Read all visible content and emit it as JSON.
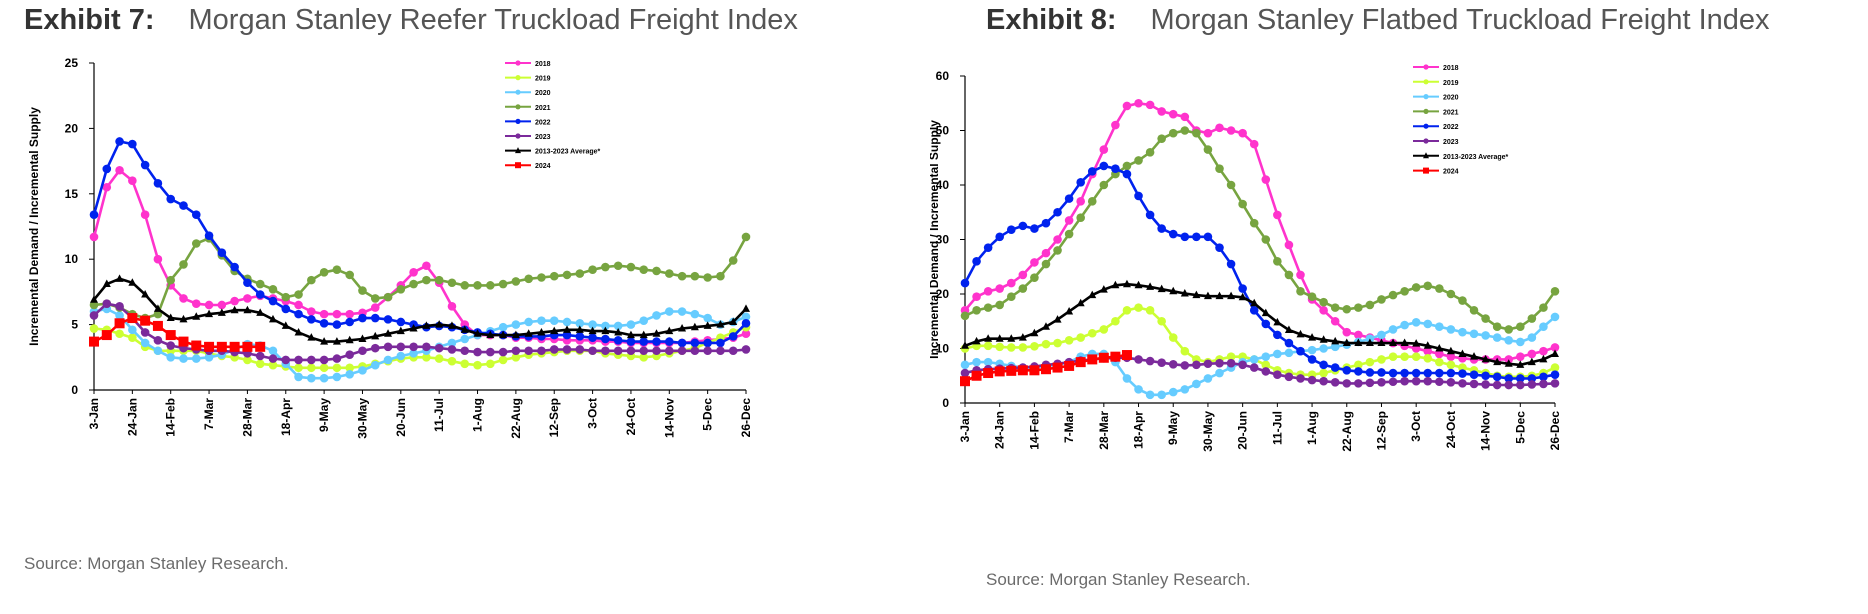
{
  "exhibits": [
    {
      "label": "Exhibit 7:",
      "title": "Morgan Stanley Reefer Truckload Freight Index",
      "source": "Source: Morgan Stanley Research."
    },
    {
      "label": "Exhibit 8:",
      "title": "Morgan Stanley Flatbed Truckload Freight Index",
      "source": "Source: Morgan Stanley Research."
    }
  ],
  "chart_data": [
    {
      "type": "line",
      "title": "Morgan Stanley Reefer Truckload Freight Index",
      "ylabel": "Incremental Demand / Incremental Supply",
      "xlabel": "",
      "ylim": [
        0,
        25
      ],
      "yticks": [
        0,
        5,
        10,
        15,
        20,
        25
      ],
      "xtick_labels": [
        "3-Jan",
        "24-Jan",
        "14-Feb",
        "7-Mar",
        "28-Mar",
        "18-Apr",
        "9-May",
        "30-May",
        "20-Jun",
        "11-Jul",
        "1-Aug",
        "22-Aug",
        "12-Sep",
        "3-Oct",
        "24-Oct",
        "14-Nov",
        "5-Dec",
        "26-Dec"
      ],
      "legend_position": "top-right",
      "grid": false,
      "series": [
        {
          "name": "2018",
          "color": "#ff33cc",
          "marker": "circle",
          "values": [
            11.7,
            15.5,
            16.8,
            16.0,
            13.4,
            10.0,
            8.0,
            7.0,
            6.6,
            6.5,
            6.5,
            6.8,
            7.0,
            7.2,
            7.0,
            6.8,
            6.5,
            6.0,
            5.8,
            5.8,
            5.8,
            5.9,
            6.3,
            7.1,
            8.0,
            9.0,
            9.5,
            8.2,
            6.4,
            5.0,
            4.2,
            4.2,
            4.2,
            4.0,
            4.0,
            3.9,
            3.9,
            3.8,
            3.8,
            3.8,
            3.7,
            3.7,
            3.6,
            3.6,
            3.6,
            3.6,
            3.6,
            3.7,
            3.8,
            3.9,
            4.0,
            4.3
          ]
        },
        {
          "name": "2019",
          "color": "#ccff33",
          "marker": "circle",
          "values": [
            4.7,
            4.6,
            4.3,
            4.0,
            3.3,
            3.0,
            3.0,
            3.0,
            3.0,
            2.8,
            2.6,
            2.5,
            2.3,
            2.0,
            1.9,
            1.8,
            1.7,
            1.7,
            1.7,
            1.7,
            1.7,
            1.8,
            2.0,
            2.2,
            2.4,
            2.5,
            2.5,
            2.4,
            2.2,
            2.0,
            1.9,
            2.0,
            2.3,
            2.5,
            2.7,
            2.8,
            2.9,
            3.0,
            3.0,
            3.0,
            2.8,
            2.7,
            2.6,
            2.5,
            2.6,
            2.8,
            3.0,
            3.2,
            3.6,
            4.0,
            4.4,
            4.8
          ]
        },
        {
          "name": "2020",
          "color": "#66ccff",
          "marker": "circle",
          "values": [
            6.0,
            6.2,
            5.7,
            4.6,
            3.6,
            3.0,
            2.5,
            2.4,
            2.4,
            2.5,
            2.7,
            3.1,
            3.5,
            3.4,
            3.0,
            2.0,
            1.0,
            0.9,
            0.9,
            1.0,
            1.2,
            1.5,
            1.9,
            2.3,
            2.6,
            2.8,
            3.0,
            3.3,
            3.6,
            3.9,
            4.2,
            4.5,
            4.8,
            5.0,
            5.2,
            5.3,
            5.3,
            5.2,
            5.1,
            5.0,
            4.9,
            4.9,
            5.0,
            5.3,
            5.7,
            6.0,
            6.0,
            5.8,
            5.5,
            5.0,
            5.2,
            5.6
          ]
        },
        {
          "name": "2021",
          "color": "#77a440",
          "marker": "circle",
          "values": [
            6.5,
            6.6,
            6.3,
            5.8,
            5.5,
            5.8,
            8.4,
            9.6,
            11.2,
            11.6,
            10.3,
            9.1,
            8.5,
            8.1,
            7.7,
            7.1,
            7.3,
            8.4,
            9.0,
            9.2,
            8.8,
            7.6,
            7.0,
            7.1,
            7.7,
            8.1,
            8.4,
            8.4,
            8.2,
            8.0,
            8.0,
            8.0,
            8.1,
            8.3,
            8.5,
            8.6,
            8.7,
            8.8,
            8.9,
            9.2,
            9.4,
            9.5,
            9.4,
            9.2,
            9.1,
            8.9,
            8.7,
            8.7,
            8.6,
            8.7,
            9.9,
            11.7
          ]
        },
        {
          "name": "2022",
          "color": "#0022ee",
          "marker": "circle",
          "values": [
            13.4,
            16.9,
            19.0,
            18.8,
            17.2,
            15.8,
            14.6,
            14.1,
            13.4,
            11.8,
            10.5,
            9.4,
            8.2,
            7.3,
            6.8,
            6.2,
            5.8,
            5.4,
            5.1,
            5.0,
            5.2,
            5.5,
            5.5,
            5.4,
            5.2,
            5.0,
            4.8,
            4.9,
            4.8,
            4.6,
            4.4,
            4.3,
            4.2,
            4.1,
            4.1,
            4.1,
            4.2,
            4.2,
            4.1,
            4.0,
            3.9,
            3.8,
            3.7,
            3.7,
            3.7,
            3.7,
            3.6,
            3.6,
            3.6,
            3.6,
            4.1,
            5.1
          ]
        },
        {
          "name": "2023",
          "color": "#7b2a9b",
          "marker": "circle",
          "values": [
            5.7,
            6.6,
            6.4,
            5.5,
            4.4,
            3.8,
            3.4,
            3.2,
            3.1,
            3.0,
            3.0,
            2.9,
            2.8,
            2.6,
            2.4,
            2.3,
            2.3,
            2.3,
            2.3,
            2.4,
            2.7,
            3.0,
            3.2,
            3.3,
            3.3,
            3.3,
            3.3,
            3.2,
            3.1,
            3.0,
            2.9,
            2.9,
            2.9,
            3.0,
            3.0,
            3.0,
            3.1,
            3.1,
            3.1,
            3.0,
            3.0,
            3.0,
            3.0,
            3.0,
            3.0,
            3.0,
            3.0,
            3.0,
            3.0,
            3.0,
            3.0,
            3.1
          ]
        },
        {
          "name": "2013-2023 Average*",
          "color": "#000000",
          "marker": "triangle",
          "values": [
            6.9,
            8.1,
            8.5,
            8.2,
            7.3,
            6.2,
            5.5,
            5.4,
            5.6,
            5.8,
            5.9,
            6.1,
            6.1,
            5.9,
            5.4,
            4.9,
            4.4,
            4.0,
            3.7,
            3.7,
            3.8,
            3.9,
            4.1,
            4.3,
            4.5,
            4.7,
            4.9,
            5.0,
            4.9,
            4.6,
            4.3,
            4.2,
            4.2,
            4.2,
            4.3,
            4.4,
            4.5,
            4.6,
            4.6,
            4.5,
            4.5,
            4.4,
            4.2,
            4.2,
            4.3,
            4.5,
            4.7,
            4.8,
            4.9,
            5.0,
            5.2,
            6.2
          ]
        },
        {
          "name": "2024",
          "color": "#ff0000",
          "marker": "square",
          "values": [
            3.7,
            4.2,
            5.1,
            5.5,
            5.3,
            4.9,
            4.2,
            3.7,
            3.4,
            3.3,
            3.3,
            3.3,
            3.3,
            3.3
          ]
        }
      ]
    },
    {
      "type": "line",
      "title": "Morgan Stanley Flatbed Truckload Freight Index",
      "ylabel": "Incremental Demand / Incremental Supply",
      "xlabel": "",
      "ylim": [
        0,
        60
      ],
      "yticks": [
        0,
        10,
        20,
        30,
        40,
        50,
        60
      ],
      "xtick_labels": [
        "3-Jan",
        "24-Jan",
        "14-Feb",
        "7-Mar",
        "28-Mar",
        "18-Apr",
        "9-May",
        "30-May",
        "20-Jun",
        "11-Jul",
        "1-Aug",
        "22-Aug",
        "12-Sep",
        "3-Oct",
        "24-Oct",
        "14-Nov",
        "5-Dec",
        "26-Dec"
      ],
      "legend_position": "top-right",
      "grid": false,
      "series": [
        {
          "name": "2018",
          "color": "#ff33cc",
          "marker": "circle",
          "values": [
            17.0,
            19.5,
            20.5,
            21.0,
            22.0,
            23.5,
            25.8,
            27.5,
            30.0,
            33.5,
            37.0,
            42.0,
            46.5,
            51.0,
            54.5,
            55.0,
            54.7,
            53.5,
            53.0,
            52.5,
            50.0,
            49.5,
            50.5,
            50.0,
            49.5,
            47.5,
            41.0,
            34.5,
            29.0,
            23.5,
            19.0,
            17.0,
            15.0,
            13.0,
            12.5,
            12.0,
            11.5,
            11.0,
            10.5,
            10.0,
            9.5,
            9.0,
            8.5,
            8.2,
            8.0,
            8.0,
            8.0,
            8.0,
            8.5,
            9.0,
            9.5,
            10.2
          ]
        },
        {
          "name": "2019",
          "color": "#ccff33",
          "marker": "circle",
          "values": [
            10.0,
            10.5,
            10.5,
            10.3,
            10.2,
            10.2,
            10.4,
            10.8,
            11.0,
            11.5,
            12.0,
            12.8,
            13.5,
            15.0,
            17.0,
            17.5,
            17.0,
            15.0,
            12.0,
            9.5,
            8.0,
            7.5,
            8.0,
            8.5,
            8.5,
            8.0,
            7.0,
            6.0,
            5.5,
            5.2,
            5.2,
            5.5,
            6.0,
            6.5,
            7.0,
            7.5,
            8.0,
            8.5,
            8.5,
            8.5,
            8.2,
            7.5,
            7.0,
            6.5,
            6.0,
            5.5,
            5.0,
            4.8,
            4.8,
            5.0,
            5.5,
            6.5
          ]
        },
        {
          "name": "2020",
          "color": "#66ccff",
          "marker": "circle",
          "values": [
            7.0,
            7.5,
            7.5,
            7.2,
            6.8,
            6.5,
            6.5,
            6.8,
            7.0,
            7.5,
            8.5,
            9.0,
            9.0,
            7.5,
            4.5,
            2.5,
            1.5,
            1.5,
            2.0,
            2.5,
            3.5,
            4.5,
            5.5,
            6.5,
            7.5,
            8.0,
            8.5,
            9.0,
            9.2,
            9.5,
            9.7,
            10.0,
            10.3,
            10.7,
            11.2,
            11.8,
            12.5,
            13.5,
            14.3,
            14.8,
            14.5,
            14.0,
            13.5,
            13.0,
            12.7,
            12.4,
            12.0,
            11.5,
            11.2,
            12.0,
            14.0,
            15.8
          ]
        },
        {
          "name": "2021",
          "color": "#77a440",
          "marker": "circle",
          "values": [
            16.0,
            17.0,
            17.5,
            18.0,
            19.5,
            21.0,
            23.0,
            25.5,
            28.0,
            31.0,
            34.0,
            37.0,
            40.0,
            42.0,
            43.5,
            44.5,
            46.0,
            48.5,
            49.5,
            50.0,
            49.5,
            46.5,
            43.0,
            40.0,
            36.5,
            33.0,
            30.0,
            26.0,
            23.5,
            20.5,
            19.5,
            18.5,
            17.5,
            17.2,
            17.5,
            18.0,
            19.0,
            19.8,
            20.5,
            21.2,
            21.5,
            21.0,
            20.0,
            18.8,
            17.0,
            15.5,
            14.0,
            13.5,
            14.0,
            15.5,
            17.5,
            20.5
          ]
        },
        {
          "name": "2022",
          "color": "#0022ee",
          "marker": "circle",
          "values": [
            22.0,
            26.0,
            28.5,
            30.5,
            31.8,
            32.5,
            32.0,
            33.0,
            35.0,
            37.5,
            40.5,
            42.5,
            43.5,
            43.0,
            42.0,
            38.0,
            34.5,
            32.0,
            31.0,
            30.5,
            30.5,
            30.5,
            28.5,
            25.5,
            21.0,
            17.0,
            14.5,
            12.5,
            11.0,
            9.5,
            8.0,
            7.0,
            6.5,
            6.0,
            5.8,
            5.6,
            5.6,
            5.5,
            5.5,
            5.5,
            5.5,
            5.5,
            5.5,
            5.4,
            5.2,
            5.0,
            4.8,
            4.5,
            4.5,
            4.5,
            4.8,
            5.2
          ]
        },
        {
          "name": "2023",
          "color": "#7b2a9b",
          "marker": "circle",
          "values": [
            5.5,
            6.0,
            6.2,
            6.3,
            6.4,
            6.5,
            6.7,
            7.0,
            7.2,
            7.5,
            7.8,
            8.0,
            8.2,
            8.3,
            8.3,
            8.0,
            7.7,
            7.4,
            7.1,
            6.9,
            7.0,
            7.2,
            7.3,
            7.3,
            7.0,
            6.5,
            5.8,
            5.2,
            4.8,
            4.5,
            4.2,
            4.0,
            3.8,
            3.6,
            3.6,
            3.7,
            3.8,
            3.9,
            4.0,
            4.0,
            4.0,
            3.9,
            3.8,
            3.6,
            3.5,
            3.4,
            3.3,
            3.3,
            3.3,
            3.4,
            3.5,
            3.6
          ]
        },
        {
          "name": "2013-2023 Average*",
          "color": "#000000",
          "marker": "triangle",
          "values": [
            10.5,
            11.3,
            11.8,
            11.8,
            11.8,
            12.0,
            12.8,
            14.0,
            15.3,
            16.8,
            18.3,
            19.8,
            20.8,
            21.6,
            21.8,
            21.6,
            21.3,
            20.9,
            20.5,
            20.1,
            19.8,
            19.6,
            19.6,
            19.6,
            19.4,
            18.3,
            16.5,
            14.8,
            13.4,
            12.6,
            12.0,
            11.6,
            11.3,
            11.0,
            11.0,
            11.0,
            11.0,
            11.0,
            11.0,
            10.9,
            10.5,
            10.0,
            9.5,
            9.0,
            8.5,
            8.0,
            7.5,
            7.2,
            7.0,
            7.5,
            8.0,
            9.0
          ]
        },
        {
          "name": "2024",
          "color": "#ff0000",
          "marker": "square",
          "values": [
            4.0,
            5.0,
            5.5,
            5.8,
            5.9,
            6.0,
            6.0,
            6.2,
            6.5,
            6.8,
            7.5,
            8.0,
            8.3,
            8.5,
            8.8
          ]
        }
      ]
    }
  ]
}
